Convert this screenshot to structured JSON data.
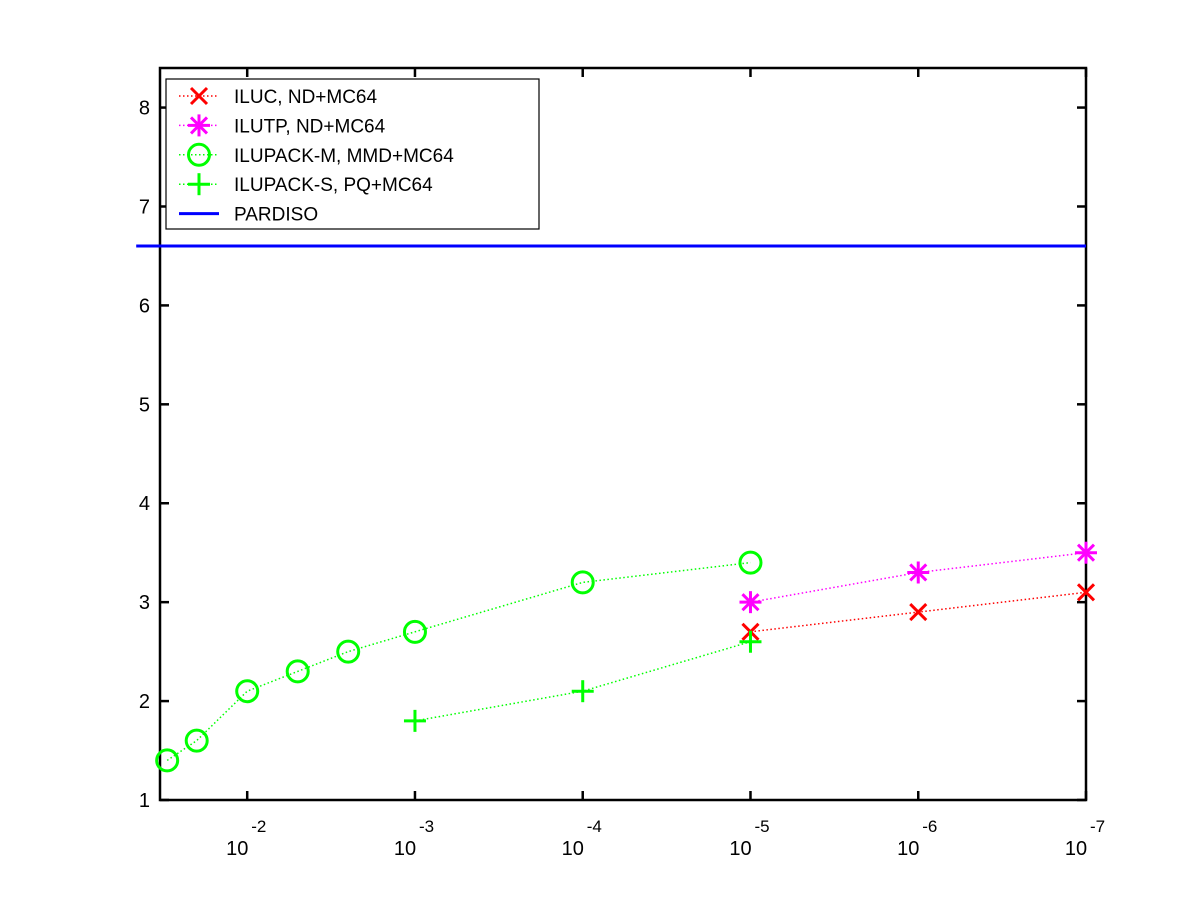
{
  "chart_data": {
    "type": "line",
    "title": "",
    "xlabel": "",
    "ylabel": "",
    "x_scale": "log",
    "x_reversed": true,
    "xlim": [
      0.0331,
      1e-07
    ],
    "ylim": [
      1,
      8.4
    ],
    "grid": false,
    "legend_position": "top-left",
    "x_ticks": [
      {
        "x": 0.01,
        "base": "10",
        "exp": "-2"
      },
      {
        "x": 0.001,
        "base": "10",
        "exp": "-3"
      },
      {
        "x": 0.0001,
        "base": "10",
        "exp": "-4"
      },
      {
        "x": 1e-05,
        "base": "10",
        "exp": "-5"
      },
      {
        "x": 1e-06,
        "base": "10",
        "exp": "-6"
      },
      {
        "x": 1e-07,
        "base": "10",
        "exp": "-7"
      }
    ],
    "y_ticks": [
      {
        "y": 1,
        "label": "1"
      },
      {
        "y": 2,
        "label": "2"
      },
      {
        "y": 3,
        "label": "3"
      },
      {
        "y": 4,
        "label": "4"
      },
      {
        "y": 5,
        "label": "5"
      },
      {
        "y": 6,
        "label": "6"
      },
      {
        "y": 7,
        "label": "7"
      },
      {
        "y": 8,
        "label": "8"
      }
    ],
    "series": [
      {
        "name": "ILUC,  ND+MC64",
        "color": "#ff0000",
        "marker": "x",
        "line_style": "dotted",
        "points": [
          {
            "x": 1e-05,
            "y": 2.7
          },
          {
            "x": 1e-06,
            "y": 2.9
          },
          {
            "x": 1e-07,
            "y": 3.1
          }
        ]
      },
      {
        "name": "ILUTP,  ND+MC64",
        "color": "#ff00ff",
        "marker": "asterisk",
        "line_style": "dotted",
        "points": [
          {
            "x": 1e-05,
            "y": 3.0
          },
          {
            "x": 1e-06,
            "y": 3.3
          },
          {
            "x": 1e-07,
            "y": 3.5
          }
        ]
      },
      {
        "name": "ILUPACK-M, MMD+MC64",
        "color": "#00ff00",
        "marker": "circle",
        "line_style": "dotted",
        "points": [
          {
            "x": 0.03,
            "y": 1.4
          },
          {
            "x": 0.02,
            "y": 1.6
          },
          {
            "x": 0.01,
            "y": 2.1
          },
          {
            "x": 0.005,
            "y": 2.3
          },
          {
            "x": 0.0025,
            "y": 2.5
          },
          {
            "x": 0.001,
            "y": 2.7
          },
          {
            "x": 0.0001,
            "y": 3.2
          },
          {
            "x": 1e-05,
            "y": 3.4
          }
        ]
      },
      {
        "name": "ILUPACK-S, PQ+MC64",
        "color": "#00ff00",
        "marker": "plus",
        "line_style": "dotted",
        "points": [
          {
            "x": 0.001,
            "y": 1.8
          },
          {
            "x": 0.0001,
            "y": 2.1
          },
          {
            "x": 1e-05,
            "y": 2.6
          }
        ]
      },
      {
        "name": "PARDISO",
        "color": "#0000ff",
        "marker": "none",
        "line_style": "solid",
        "constant_y": 6.6
      }
    ]
  }
}
